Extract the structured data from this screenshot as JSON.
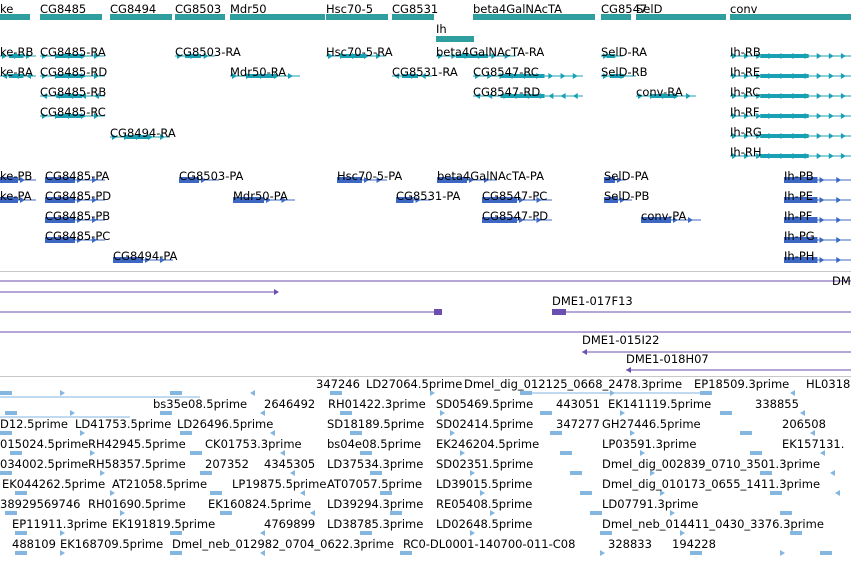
{
  "colors": {
    "gene": "#2f9e9e",
    "transcript": "#18a0b4",
    "protein": "#3c68c4",
    "clone": "#6a4fb0",
    "est": "#84b6e0",
    "separator": "#c8c8c8"
  },
  "tracks": {
    "genes": {
      "labels": [
        "ke",
        "CG8485",
        "CG8494",
        "CG8503",
        "Mdr50",
        "Hsc70-5",
        "CG8531",
        "beta4GalNAcTA",
        "CG8547",
        "SelD",
        "conv",
        "Ih"
      ]
    },
    "transcripts": {
      "labels": [
        "ke-RB",
        "ke-RA",
        "CG8485-RA",
        "CG8485-RD",
        "CG8485-RB",
        "CG8485-RC",
        "CG8494-RA",
        "CG8503-RA",
        "Mdr50-RA",
        "Hsc70-5-RA",
        "beta4GalNAcTA-RA",
        "CG8531-RA",
        "CG8547-RC",
        "CG8547-RD",
        "SelD-RA",
        "SelD-RB",
        "conv-RA",
        "Ih-RB",
        "Ih-RE",
        "Ih-RC",
        "Ih-RF",
        "Ih-RG",
        "Ih-RH"
      ]
    },
    "proteins": {
      "labels": [
        "ke-PB",
        "ke-PA",
        "CG8485-PA",
        "CG8485-PD",
        "CG8485-PB",
        "CG8485-PC",
        "CG8494-PA",
        "CG8503-PA",
        "Mdr50-PA",
        "Hsc70-5-PA",
        "beta4GalNAcTA-PA",
        "CG8531-PA",
        "CG8547-PC",
        "CG8547-PD",
        "SelD-PA",
        "SelD-PB",
        "conv-PA",
        "Ih-PB",
        "Ih-PE",
        "Ih-PF",
        "Ih-PG",
        "Ih-PH"
      ]
    },
    "clones": {
      "labels": [
        "DME1-017F13",
        "DME1-015I22",
        "DME1-018H07",
        "DM"
      ]
    },
    "ests": {
      "labels": [
        "347246",
        "LD27064.5prime",
        "Dmel_dig_012125_0668_2478.3prime",
        "EP18509.3prime",
        "HL0318",
        "bs35e08.5prime",
        "2646492",
        "RH01422.3prime",
        "SD05469.5prime",
        "443051",
        "EK141119.5prime",
        "338855",
        "D12.5prime",
        "LD41753.5prime",
        "LD26496.5prime",
        "SD18189.5prime",
        "SD02414.5prime",
        "347277",
        "GH27446.5prime",
        "206508",
        "015024.5prime",
        "RH42945.5prime",
        "CK01753.3prime",
        "bs04e08.5prime",
        "EK246204.5prime",
        "LP03591.3prime",
        "EK157131.",
        "034002.5prime",
        "RH58357.5prime",
        "207352",
        "4345305",
        "LD37534.3prime",
        "SD02351.5prime",
        "Dmel_dig_002839_0710_3501.3prime",
        "EK044262.5prime",
        "AT21058.5prime",
        "LP19875.5prime",
        "AT07057.5prime",
        "LD39015.5prime",
        "Dmel_dig_010173_0655_1411.3prime",
        "38929569746",
        "RH01690.5prime",
        "EK160824.5prime",
        "LD39294.3prime",
        "RE05408.5prime",
        "LD07791.3prime",
        "EP11911.3prime",
        "EK191819.5prime",
        "4769899",
        "LD38785.3prime",
        "LD02648.5prime",
        "Dmel_neb_014411_0430_3376.3prime",
        "488109",
        "EK168709.5prime",
        "Dmel_neb_012982_0704_0622.3prime",
        "RC0-DL0001-140700-011-C08",
        "328833",
        "194228"
      ]
    }
  }
}
